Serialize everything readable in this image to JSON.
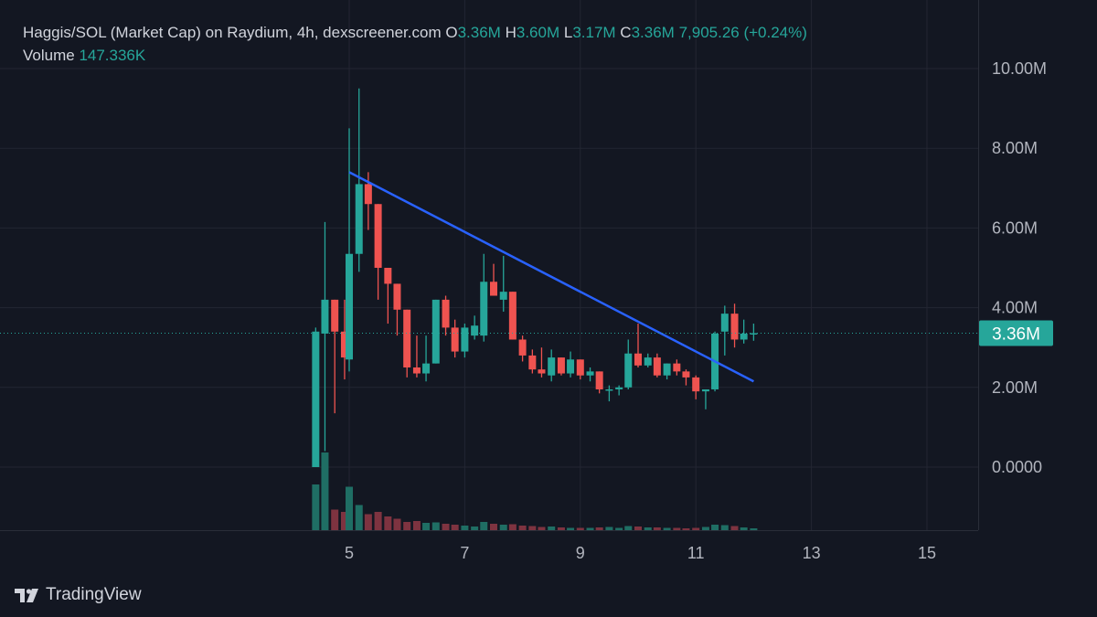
{
  "header": {
    "title": "Haggis/SOL (Market Cap) on Raydium, 4h, dexscreener.com",
    "o_label": "O",
    "o_value": "3.36M",
    "h_label": "H",
    "h_value": "3.60M",
    "l_label": "L",
    "l_value": "3.17M",
    "c_label": "C",
    "c_value": "3.36M",
    "change": "7,905.26 (+0.24%)",
    "volume_label": "Volume",
    "volume_value": "147.336K"
  },
  "brand": {
    "name": "TradingView",
    "icon": "tradingview-logo-icon"
  },
  "colors": {
    "background": "#131722",
    "grid": "#232632",
    "up": "#26a69a",
    "down": "#ef5350",
    "up_volume": "#1f6e64",
    "down_volume": "#7e3340",
    "trendline": "#2962ff",
    "price_label_bg": "#26a69a"
  },
  "chart_data": {
    "type": "candlestick",
    "x_unit": "day of month",
    "y_unit": "market cap (M)",
    "y_ticks": [
      "0.0000",
      "2.00M",
      "4.00M",
      "6.00M",
      "8.00M",
      "10.00M"
    ],
    "y_tick_values": [
      0,
      2,
      4,
      6,
      8,
      10
    ],
    "x_ticks": [
      "5",
      "7",
      "9",
      "11",
      "13",
      "15"
    ],
    "x_tick_values": [
      5,
      7,
      9,
      11,
      13,
      15
    ],
    "xlim": [
      3.0,
      15.85
    ],
    "ylim": [
      -1.6,
      11.0
    ],
    "grid": true,
    "current_price_label": "3.36M",
    "current_price": 3.36,
    "trendline": {
      "x1": 5.0,
      "y1": 7.4,
      "x2": 12.0,
      "y2": 2.15
    },
    "candles": [
      {
        "t": 4.42,
        "o": 0.0,
        "h": 3.5,
        "l": 0.0,
        "c": 3.4
      },
      {
        "t": 4.58,
        "o": 3.35,
        "h": 6.15,
        "l": 0.4,
        "c": 4.2
      },
      {
        "t": 4.75,
        "o": 4.2,
        "h": 4.2,
        "l": 1.35,
        "c": 3.4
      },
      {
        "t": 4.92,
        "o": 3.4,
        "h": 4.2,
        "l": 2.2,
        "c": 2.75
      },
      {
        "t": 5.0,
        "o": 2.7,
        "h": 8.5,
        "l": 2.4,
        "c": 5.35
      },
      {
        "t": 5.17,
        "o": 5.35,
        "h": 9.5,
        "l": 4.9,
        "c": 7.1
      },
      {
        "t": 5.33,
        "o": 7.1,
        "h": 7.4,
        "l": 5.95,
        "c": 6.6
      },
      {
        "t": 5.5,
        "o": 6.6,
        "h": 6.6,
        "l": 4.2,
        "c": 5.0
      },
      {
        "t": 5.67,
        "o": 5.0,
        "h": 5.0,
        "l": 3.6,
        "c": 4.6
      },
      {
        "t": 5.83,
        "o": 4.6,
        "h": 4.6,
        "l": 3.3,
        "c": 3.95
      },
      {
        "t": 6.0,
        "o": 3.95,
        "h": 3.95,
        "l": 2.25,
        "c": 2.5
      },
      {
        "t": 6.17,
        "o": 2.5,
        "h": 3.3,
        "l": 2.25,
        "c": 2.35
      },
      {
        "t": 6.33,
        "o": 2.35,
        "h": 3.3,
        "l": 2.15,
        "c": 2.6
      },
      {
        "t": 6.5,
        "o": 2.6,
        "h": 4.2,
        "l": 2.6,
        "c": 4.2
      },
      {
        "t": 6.67,
        "o": 4.2,
        "h": 4.3,
        "l": 3.3,
        "c": 3.5
      },
      {
        "t": 6.83,
        "o": 3.5,
        "h": 3.7,
        "l": 2.75,
        "c": 2.9
      },
      {
        "t": 7.0,
        "o": 2.9,
        "h": 3.6,
        "l": 2.75,
        "c": 3.5
      },
      {
        "t": 7.17,
        "o": 3.3,
        "h": 3.8,
        "l": 3.2,
        "c": 3.55
      },
      {
        "t": 7.33,
        "o": 3.3,
        "h": 5.35,
        "l": 3.15,
        "c": 4.65
      },
      {
        "t": 7.5,
        "o": 4.65,
        "h": 5.1,
        "l": 4.3,
        "c": 4.3
      },
      {
        "t": 7.67,
        "o": 4.2,
        "h": 5.3,
        "l": 3.9,
        "c": 4.4
      },
      {
        "t": 7.83,
        "o": 4.4,
        "h": 4.4,
        "l": 3.2,
        "c": 3.2
      },
      {
        "t": 8.0,
        "o": 3.2,
        "h": 3.3,
        "l": 2.65,
        "c": 2.8
      },
      {
        "t": 8.17,
        "o": 2.8,
        "h": 2.95,
        "l": 2.35,
        "c": 2.45
      },
      {
        "t": 8.33,
        "o": 2.45,
        "h": 3.0,
        "l": 2.25,
        "c": 2.35
      },
      {
        "t": 8.5,
        "o": 2.3,
        "h": 2.95,
        "l": 2.15,
        "c": 2.75
      },
      {
        "t": 8.67,
        "o": 2.75,
        "h": 2.75,
        "l": 2.3,
        "c": 2.35
      },
      {
        "t": 8.83,
        "o": 2.35,
        "h": 2.9,
        "l": 2.25,
        "c": 2.7
      },
      {
        "t": 9.0,
        "o": 2.7,
        "h": 2.7,
        "l": 2.2,
        "c": 2.3
      },
      {
        "t": 9.17,
        "o": 2.3,
        "h": 2.5,
        "l": 2.15,
        "c": 2.4
      },
      {
        "t": 9.33,
        "o": 2.4,
        "h": 2.4,
        "l": 1.85,
        "c": 1.95
      },
      {
        "t": 9.5,
        "o": 1.95,
        "h": 2.05,
        "l": 1.65,
        "c": 1.95
      },
      {
        "t": 9.67,
        "o": 1.95,
        "h": 2.05,
        "l": 1.8,
        "c": 2.0
      },
      {
        "t": 9.83,
        "o": 2.0,
        "h": 3.2,
        "l": 1.95,
        "c": 2.85
      },
      {
        "t": 10.0,
        "o": 2.85,
        "h": 3.6,
        "l": 2.5,
        "c": 2.55
      },
      {
        "t": 10.17,
        "o": 2.55,
        "h": 2.85,
        "l": 2.5,
        "c": 2.75
      },
      {
        "t": 10.33,
        "o": 2.75,
        "h": 2.85,
        "l": 2.25,
        "c": 2.3
      },
      {
        "t": 10.5,
        "o": 2.3,
        "h": 2.6,
        "l": 2.2,
        "c": 2.6
      },
      {
        "t": 10.67,
        "o": 2.6,
        "h": 2.7,
        "l": 2.3,
        "c": 2.4
      },
      {
        "t": 10.83,
        "o": 2.4,
        "h": 2.45,
        "l": 2.05,
        "c": 2.25
      },
      {
        "t": 11.0,
        "o": 2.25,
        "h": 2.3,
        "l": 1.7,
        "c": 1.9
      },
      {
        "t": 11.17,
        "o": 1.9,
        "h": 1.95,
        "l": 1.45,
        "c": 1.95
      },
      {
        "t": 11.33,
        "o": 1.95,
        "h": 3.4,
        "l": 1.9,
        "c": 3.35
      },
      {
        "t": 11.5,
        "o": 3.4,
        "h": 4.05,
        "l": 2.8,
        "c": 3.85
      },
      {
        "t": 11.67,
        "o": 3.85,
        "h": 4.1,
        "l": 3.0,
        "c": 3.2
      },
      {
        "t": 11.83,
        "o": 3.2,
        "h": 3.7,
        "l": 3.1,
        "c": 3.35
      },
      {
        "t": 12.0,
        "o": 3.36,
        "h": 3.6,
        "l": 3.17,
        "c": 3.36
      }
    ],
    "volume": [
      {
        "t": 4.42,
        "v": 1.0,
        "up": true
      },
      {
        "t": 4.58,
        "v": 1.7,
        "up": true
      },
      {
        "t": 4.75,
        "v": 0.45,
        "up": false
      },
      {
        "t": 4.92,
        "v": 0.4,
        "up": false
      },
      {
        "t": 5.0,
        "v": 0.95,
        "up": true
      },
      {
        "t": 5.17,
        "v": 0.55,
        "up": true
      },
      {
        "t": 5.33,
        "v": 0.35,
        "up": false
      },
      {
        "t": 5.5,
        "v": 0.4,
        "up": false
      },
      {
        "t": 5.67,
        "v": 0.3,
        "up": false
      },
      {
        "t": 5.83,
        "v": 0.25,
        "up": false
      },
      {
        "t": 6.0,
        "v": 0.18,
        "up": false
      },
      {
        "t": 6.17,
        "v": 0.2,
        "up": false
      },
      {
        "t": 6.33,
        "v": 0.16,
        "up": true
      },
      {
        "t": 6.5,
        "v": 0.17,
        "up": true
      },
      {
        "t": 6.67,
        "v": 0.14,
        "up": false
      },
      {
        "t": 6.83,
        "v": 0.12,
        "up": false
      },
      {
        "t": 7.0,
        "v": 0.1,
        "up": true
      },
      {
        "t": 7.17,
        "v": 0.08,
        "up": true
      },
      {
        "t": 7.33,
        "v": 0.18,
        "up": true
      },
      {
        "t": 7.5,
        "v": 0.14,
        "up": false
      },
      {
        "t": 7.67,
        "v": 0.12,
        "up": true
      },
      {
        "t": 7.83,
        "v": 0.13,
        "up": false
      },
      {
        "t": 8.0,
        "v": 0.1,
        "up": false
      },
      {
        "t": 8.17,
        "v": 0.09,
        "up": false
      },
      {
        "t": 8.33,
        "v": 0.07,
        "up": false
      },
      {
        "t": 8.5,
        "v": 0.08,
        "up": true
      },
      {
        "t": 8.67,
        "v": 0.06,
        "up": false
      },
      {
        "t": 8.83,
        "v": 0.05,
        "up": true
      },
      {
        "t": 9.0,
        "v": 0.05,
        "up": false
      },
      {
        "t": 9.17,
        "v": 0.05,
        "up": true
      },
      {
        "t": 9.33,
        "v": 0.06,
        "up": false
      },
      {
        "t": 9.5,
        "v": 0.07,
        "up": true
      },
      {
        "t": 9.67,
        "v": 0.05,
        "up": true
      },
      {
        "t": 9.83,
        "v": 0.09,
        "up": true
      },
      {
        "t": 10.0,
        "v": 0.08,
        "up": false
      },
      {
        "t": 10.17,
        "v": 0.06,
        "up": true
      },
      {
        "t": 10.33,
        "v": 0.06,
        "up": false
      },
      {
        "t": 10.5,
        "v": 0.05,
        "up": true
      },
      {
        "t": 10.67,
        "v": 0.05,
        "up": false
      },
      {
        "t": 10.83,
        "v": 0.04,
        "up": false
      },
      {
        "t": 11.0,
        "v": 0.05,
        "up": false
      },
      {
        "t": 11.17,
        "v": 0.07,
        "up": true
      },
      {
        "t": 11.33,
        "v": 0.12,
        "up": true
      },
      {
        "t": 11.5,
        "v": 0.11,
        "up": true
      },
      {
        "t": 11.67,
        "v": 0.09,
        "up": false
      },
      {
        "t": 11.83,
        "v": 0.06,
        "up": true
      },
      {
        "t": 12.0,
        "v": 0.04,
        "up": true
      }
    ]
  }
}
